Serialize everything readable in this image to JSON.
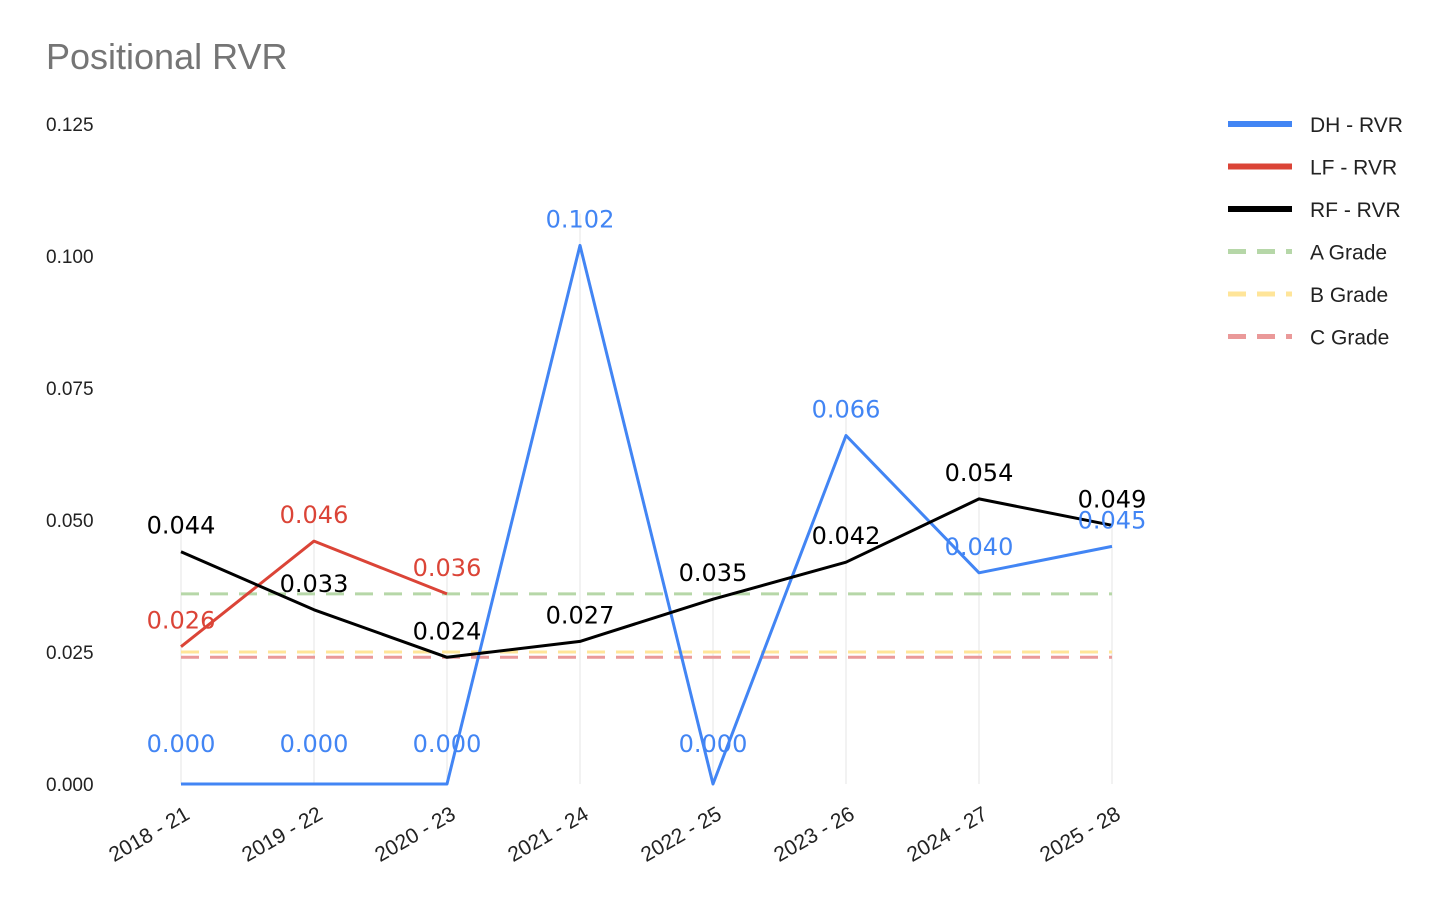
{
  "chart_data": {
    "type": "line",
    "title": "Positional RVR",
    "xlabel": "",
    "ylabel": "",
    "categories": [
      "2018 - 21",
      "2019 - 22",
      "2020 - 23",
      "2021 - 24",
      "2022 - 25",
      "2023 - 26",
      "2024 - 27",
      "2025 - 28"
    ],
    "ylim": [
      0,
      0.125
    ],
    "yticks": [
      "0.000",
      "0.025",
      "0.050",
      "0.075",
      "0.100",
      "0.125"
    ],
    "grid": false,
    "legend_position": "right",
    "series": [
      {
        "name": "DH - RVR",
        "color": "#4285f4",
        "style": "solid",
        "values": [
          0.0,
          0.0,
          0.0,
          0.102,
          0.0,
          0.066,
          0.04,
          0.045
        ],
        "labels": [
          "0.000",
          "0.000",
          "0.000",
          "0.102",
          "0.000",
          "0.066",
          "0.040",
          "0.045"
        ]
      },
      {
        "name": "LF - RVR",
        "color": "#db4437",
        "style": "solid",
        "values": [
          0.026,
          0.046,
          0.036,
          null,
          null,
          null,
          null,
          null
        ],
        "labels": [
          "0.026",
          "0.046",
          "0.036",
          null,
          null,
          null,
          null,
          null
        ]
      },
      {
        "name": "RF - RVR",
        "color": "#000000",
        "style": "solid",
        "values": [
          0.044,
          0.033,
          0.024,
          0.027,
          0.035,
          0.042,
          0.054,
          0.049
        ],
        "labels": [
          "0.044",
          "0.033",
          "0.024",
          "0.027",
          "0.035",
          "0.042",
          "0.054",
          "0.049"
        ]
      },
      {
        "name": "A Grade",
        "color": "#b6d7a8",
        "style": "dashed",
        "values": [
          0.036,
          0.036,
          0.036,
          0.036,
          0.036,
          0.036,
          0.036,
          0.036
        ]
      },
      {
        "name": "B Grade",
        "color": "#ffe599",
        "style": "dashed",
        "values": [
          0.025,
          0.025,
          0.025,
          0.025,
          0.025,
          0.025,
          0.025,
          0.025
        ]
      },
      {
        "name": "C Grade",
        "color": "#ea9999",
        "style": "dashed",
        "values": [
          0.024,
          0.024,
          0.024,
          0.024,
          0.024,
          0.024,
          0.024,
          0.024
        ]
      }
    ]
  }
}
